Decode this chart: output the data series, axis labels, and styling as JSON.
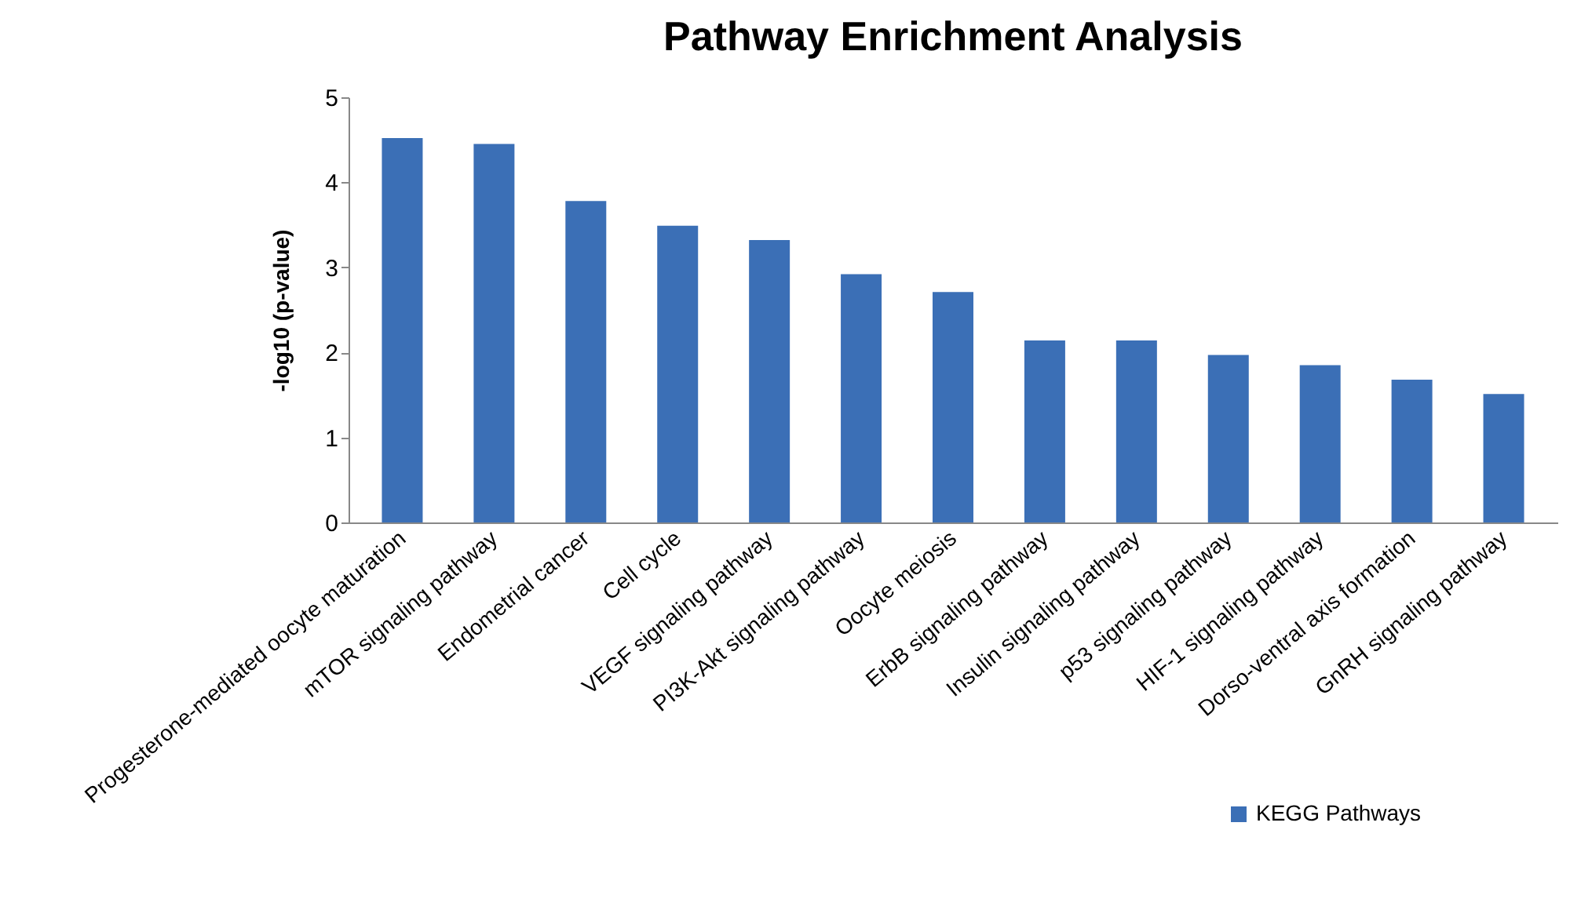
{
  "chart_data": {
    "type": "bar",
    "title": "Pathway Enrichment Analysis",
    "ylabel": "-log10 (p-value)",
    "categories": [
      "Progesterone-mediated oocyte maturation",
      "mTOR signaling pathway",
      "Endometrial cancer",
      "Cell cycle",
      "VEGF signaling pathway",
      "PI3K-Akt signaling pathway",
      "Oocyte meiosis",
      "ErbB signaling pathway",
      "Insulin signaling pathway",
      "p53 signaling pathway",
      "HIF-1 signaling pathway",
      "Dorso-ventral axis formation",
      "GnRH signaling pathway"
    ],
    "series": [
      {
        "name": "KEGG Pathways",
        "color": "#3b6fb6",
        "values": [
          4.52,
          4.45,
          3.78,
          3.49,
          3.32,
          2.92,
          2.71,
          2.14,
          2.14,
          1.97,
          1.85,
          1.68,
          1.51
        ]
      }
    ],
    "ylim": [
      0,
      5
    ],
    "yticks": [
      0,
      1,
      2,
      3,
      4,
      5
    ],
    "grid": false,
    "legend": "bottom right"
  }
}
